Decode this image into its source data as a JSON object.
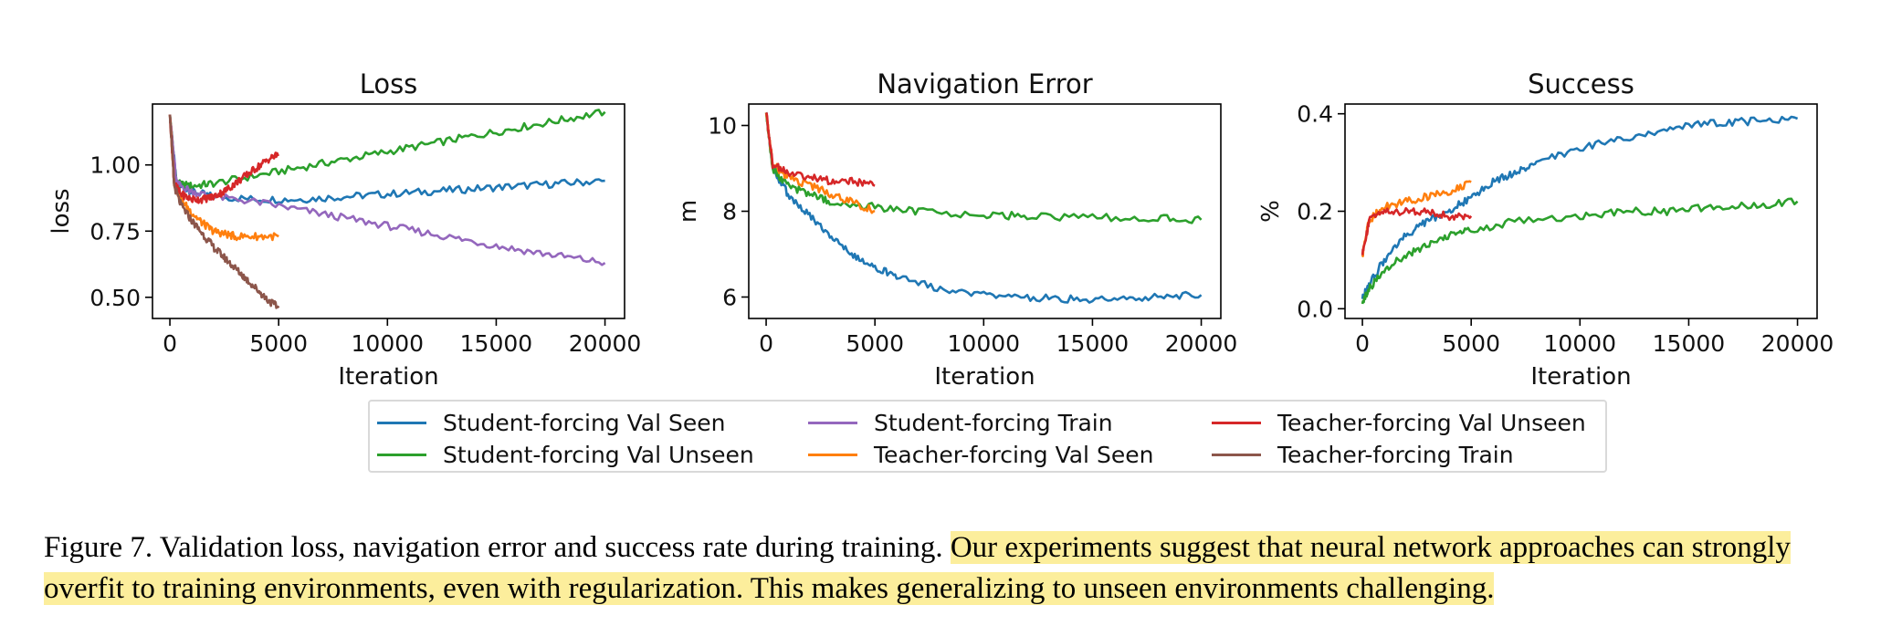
{
  "chart_data": [
    {
      "type": "line",
      "title": "Loss",
      "xlabel": "Iteration",
      "ylabel": "loss",
      "xlim": [
        -800,
        20900
      ],
      "ylim": [
        0.42,
        1.23
      ],
      "xticks": [
        0,
        5000,
        10000,
        15000,
        20000
      ],
      "yticks": [
        0.5,
        0.75,
        1.0
      ],
      "ytick_labels": [
        "0.50",
        "0.75",
        "1.00"
      ],
      "series": [
        {
          "name": "Student-forcing Val Seen",
          "x": [
            0,
            300,
            1000,
            2000,
            4000,
            6000,
            8000,
            10000,
            12000,
            14000,
            16000,
            18000,
            20000
          ],
          "y": [
            1.19,
            0.93,
            0.9,
            0.88,
            0.87,
            0.87,
            0.88,
            0.89,
            0.9,
            0.91,
            0.92,
            0.93,
            0.94
          ]
        },
        {
          "name": "Student-forcing Val Unseen",
          "x": [
            0,
            300,
            1000,
            2000,
            4000,
            6000,
            8000,
            10000,
            12000,
            14000,
            16000,
            18000,
            20000
          ],
          "y": [
            1.19,
            0.93,
            0.92,
            0.93,
            0.96,
            0.99,
            1.02,
            1.05,
            1.08,
            1.11,
            1.14,
            1.17,
            1.2
          ]
        },
        {
          "name": "Student-forcing Train",
          "x": [
            0,
            300,
            1000,
            2000,
            4000,
            6000,
            8000,
            10000,
            12000,
            14000,
            16000,
            18000,
            20000
          ],
          "y": [
            1.19,
            0.93,
            0.9,
            0.88,
            0.86,
            0.83,
            0.8,
            0.77,
            0.74,
            0.71,
            0.68,
            0.655,
            0.63
          ]
        },
        {
          "name": "Teacher-forcing Val Seen",
          "x": [
            0,
            200,
            500,
            1000,
            1500,
            2000,
            2500,
            3000,
            4000,
            5000
          ],
          "y": [
            1.19,
            0.93,
            0.87,
            0.82,
            0.78,
            0.75,
            0.74,
            0.73,
            0.73,
            0.73
          ]
        },
        {
          "name": "Teacher-forcing Val Unseen",
          "x": [
            0,
            200,
            500,
            1000,
            1500,
            2000,
            2500,
            3000,
            3500,
            4000,
            4500,
            5000
          ],
          "y": [
            1.19,
            0.93,
            0.89,
            0.87,
            0.87,
            0.88,
            0.9,
            0.93,
            0.96,
            0.99,
            1.02,
            1.04
          ]
        },
        {
          "name": "Teacher-forcing Train",
          "x": [
            0,
            200,
            500,
            1000,
            1500,
            2000,
            2500,
            3000,
            3500,
            4000,
            4500,
            5000
          ],
          "y": [
            1.19,
            0.92,
            0.85,
            0.79,
            0.74,
            0.69,
            0.65,
            0.61,
            0.57,
            0.53,
            0.49,
            0.46
          ]
        }
      ]
    },
    {
      "type": "line",
      "title": "Navigation Error",
      "xlabel": "Iteration",
      "ylabel": "m",
      "xlim": [
        -800,
        20900
      ],
      "ylim": [
        5.5,
        10.5
      ],
      "xticks": [
        0,
        5000,
        10000,
        15000,
        20000
      ],
      "yticks": [
        6,
        8,
        10
      ],
      "ytick_labels": [
        "6",
        "8",
        "10"
      ],
      "series": [
        {
          "name": "Student-forcing Val Seen",
          "x": [
            0,
            300,
            1000,
            2000,
            3000,
            4000,
            5000,
            6000,
            8000,
            10000,
            12000,
            14000,
            16000,
            18000,
            20000
          ],
          "y": [
            10.3,
            9.0,
            8.4,
            7.9,
            7.4,
            7.0,
            6.7,
            6.5,
            6.2,
            6.05,
            6.0,
            5.95,
            5.95,
            6.0,
            6.05
          ]
        },
        {
          "name": "Student-forcing Val Unseen",
          "x": [
            0,
            300,
            1000,
            2000,
            3000,
            5000,
            7000,
            10000,
            12000,
            15000,
            18000,
            20000
          ],
          "y": [
            10.3,
            9.0,
            8.6,
            8.4,
            8.2,
            8.1,
            8.0,
            7.9,
            7.9,
            7.85,
            7.85,
            7.8
          ]
        },
        {
          "name": "Student-forcing Train",
          "x": [],
          "y": []
        },
        {
          "name": "Teacher-forcing Val Seen",
          "x": [
            0,
            300,
            1000,
            2000,
            3000,
            4000,
            5000
          ],
          "y": [
            10.3,
            9.1,
            8.8,
            8.6,
            8.4,
            8.2,
            8.0
          ]
        },
        {
          "name": "Teacher-forcing Val Unseen",
          "x": [
            0,
            300,
            1000,
            2000,
            3000,
            4000,
            5000
          ],
          "y": [
            10.3,
            9.1,
            8.9,
            8.8,
            8.7,
            8.7,
            8.6
          ]
        },
        {
          "name": "Teacher-forcing Train",
          "x": [],
          "y": []
        }
      ]
    },
    {
      "type": "line",
      "title": "Success",
      "xlabel": "Iteration",
      "ylabel": "%",
      "xlim": [
        -800,
        20900
      ],
      "ylim": [
        -0.02,
        0.42
      ],
      "xticks": [
        0,
        5000,
        10000,
        15000,
        20000
      ],
      "yticks": [
        0.0,
        0.2,
        0.4
      ],
      "ytick_labels": [
        "0.0",
        "0.2",
        "0.4"
      ],
      "series": [
        {
          "name": "Student-forcing Val Seen",
          "x": [
            0,
            300,
            1000,
            2000,
            3000,
            4000,
            5000,
            6000,
            7000,
            8000,
            10000,
            12000,
            14000,
            16000,
            18000,
            20000
          ],
          "y": [
            0.02,
            0.05,
            0.1,
            0.15,
            0.18,
            0.2,
            0.23,
            0.26,
            0.28,
            0.3,
            0.33,
            0.35,
            0.37,
            0.38,
            0.385,
            0.39
          ]
        },
        {
          "name": "Student-forcing Val Unseen",
          "x": [
            0,
            300,
            1000,
            2000,
            3000,
            4000,
            5000,
            7000,
            10000,
            12000,
            14000,
            16000,
            18000,
            20000
          ],
          "y": [
            0.01,
            0.04,
            0.08,
            0.11,
            0.13,
            0.15,
            0.16,
            0.18,
            0.19,
            0.2,
            0.2,
            0.21,
            0.21,
            0.22
          ]
        },
        {
          "name": "Student-forcing Train",
          "x": [],
          "y": []
        },
        {
          "name": "Teacher-forcing Val Seen",
          "x": [
            0,
            300,
            1000,
            2000,
            3000,
            4000,
            5000
          ],
          "y": [
            0.11,
            0.18,
            0.21,
            0.22,
            0.23,
            0.24,
            0.26
          ]
        },
        {
          "name": "Teacher-forcing Val Unseen",
          "x": [
            0,
            300,
            1000,
            2000,
            3000,
            4000,
            5000
          ],
          "y": [
            0.11,
            0.18,
            0.2,
            0.2,
            0.2,
            0.19,
            0.19
          ]
        },
        {
          "name": "Teacher-forcing Train",
          "x": [],
          "y": []
        }
      ]
    }
  ],
  "legend": {
    "placement": "bottom-center",
    "items": [
      {
        "label": "Student-forcing Val Seen",
        "color": "#1f77b4"
      },
      {
        "label": "Student-forcing Train",
        "color": "#9467bd"
      },
      {
        "label": "Teacher-forcing Val Unseen",
        "color": "#d62728"
      },
      {
        "label": "Student-forcing Val Unseen",
        "color": "#2ca02c"
      },
      {
        "label": "Teacher-forcing Val Seen",
        "color": "#ff7f0e"
      },
      {
        "label": "Teacher-forcing Train",
        "color": "#8c564b"
      }
    ]
  },
  "caption": {
    "plain": "Figure 7. Validation loss, navigation error and success rate during training. ",
    "highlighted": "Our experiments suggest that neural network approaches can strongly overfit to training environments, even with regularization. This makes generalizing to unseen environments challenging."
  },
  "colors": {
    "Student-forcing Val Seen": "#1f77b4",
    "Student-forcing Val Unseen": "#2ca02c",
    "Student-forcing Train": "#9467bd",
    "Teacher-forcing Val Seen": "#ff7f0e",
    "Teacher-forcing Val Unseen": "#d62728",
    "Teacher-forcing Train": "#8c564b",
    "highlight": "#fcee9c"
  }
}
